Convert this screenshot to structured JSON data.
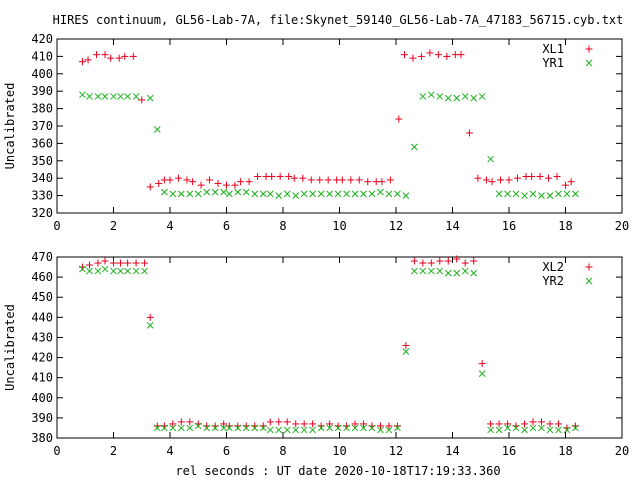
{
  "chart_data": [
    {
      "type": "scatter",
      "title": "HIRES continuum, GL56-Lab-7A, file:Skynet_59140_GL56-Lab-7A_47183_56715.cyb.txt",
      "xlabel": "",
      "ylabel": "Uncalibrated",
      "xlim": [
        0,
        20
      ],
      "ylim": [
        320,
        420
      ],
      "xticks": [
        "0",
        "2",
        "4",
        "6",
        "8",
        "10",
        "12",
        "14",
        "16",
        "18",
        "20"
      ],
      "yticks": [
        "320",
        "330",
        "340",
        "350",
        "360",
        "370",
        "380",
        "390",
        "400",
        "410",
        "420"
      ],
      "grid": false,
      "legend_position": "top-right",
      "series": [
        {
          "name": "XL1",
          "marker": "plus",
          "color": "#e8001c",
          "x": [
            0.9,
            1.1,
            1.4,
            1.7,
            1.9,
            2.2,
            2.4,
            2.7,
            3.0,
            3.3,
            3.6,
            3.8,
            4.0,
            4.3,
            4.6,
            4.8,
            5.1,
            5.4,
            5.7,
            6.0,
            6.3,
            6.5,
            6.8,
            7.1,
            7.4,
            7.6,
            7.9,
            8.2,
            8.4,
            8.7,
            9.0,
            9.3,
            9.6,
            9.9,
            10.1,
            10.4,
            10.7,
            11.0,
            11.3,
            11.5,
            11.8,
            12.1,
            12.3,
            12.6,
            12.9,
            13.2,
            13.5,
            13.8,
            14.1,
            14.3,
            14.6,
            14.9,
            15.2,
            15.4,
            15.7,
            16.0,
            16.3,
            16.6,
            16.8,
            17.1,
            17.4,
            17.7,
            18.0,
            18.2
          ],
          "y": [
            407,
            408,
            411,
            411,
            409,
            409,
            410,
            410,
            385,
            335,
            337,
            339,
            339,
            340,
            339,
            338,
            336,
            339,
            337,
            336,
            336,
            338,
            338,
            341,
            341,
            341,
            341,
            341,
            340,
            340,
            339,
            339,
            339,
            339,
            339,
            339,
            339,
            338,
            338,
            338,
            339,
            374,
            411,
            409,
            410,
            412,
            411,
            410,
            411,
            411,
            366,
            340,
            339,
            338,
            339,
            339,
            340,
            341,
            341,
            341,
            340,
            341,
            336,
            338
          ],
          "x_adj": [
            0.9,
            1.15,
            1.45,
            1.7,
            2.0,
            2.25,
            2.5,
            2.8,
            3.1,
            3.3,
            3.55,
            3.8,
            4.1,
            4.4,
            4.7,
            5.0,
            5.3,
            5.6,
            5.9,
            6.1,
            6.4,
            6.7,
            7.0,
            7.3,
            7.55,
            7.85,
            8.15,
            8.45,
            8.75,
            9.05,
            9.35,
            9.65,
            9.95,
            10.25,
            10.55,
            10.85,
            11.15,
            11.45,
            11.75,
            12.05,
            12.35,
            12.65,
            12.95,
            13.25,
            13.55,
            13.85,
            14.15,
            14.45,
            14.75,
            15.05,
            15.35,
            15.65,
            15.95,
            16.25,
            16.55,
            16.85,
            17.15,
            17.45,
            17.75,
            18.05,
            18.35
          ]
        },
        {
          "name": "YR1",
          "marker": "cross",
          "color": "#1ab21a",
          "x": [
            0.9,
            1.15,
            1.45,
            1.7,
            2.0,
            2.25,
            2.5,
            2.8,
            3.3,
            3.55,
            3.8,
            4.1,
            4.4,
            4.7,
            5.0,
            5.3,
            5.6,
            5.9,
            6.1,
            6.4,
            6.7,
            7.0,
            7.3,
            7.55,
            7.85,
            8.15,
            8.45,
            8.75,
            9.05,
            9.35,
            9.65,
            9.95,
            10.25,
            10.55,
            10.85,
            11.15,
            11.45,
            11.75,
            12.05,
            12.35,
            12.65,
            12.95,
            13.25,
            13.55,
            13.85,
            14.15,
            14.45,
            14.75,
            15.05,
            15.35,
            15.65,
            15.95,
            16.25,
            16.55,
            16.85,
            17.15,
            17.45,
            17.75,
            18.05,
            18.35
          ],
          "y": [
            388,
            387,
            387,
            387,
            387,
            387,
            387,
            387,
            386,
            368,
            332,
            331,
            331,
            331,
            331,
            332,
            332,
            332,
            331,
            332,
            332,
            331,
            331,
            331,
            330,
            331,
            330,
            331,
            331,
            331,
            331,
            331,
            331,
            331,
            331,
            331,
            332,
            331,
            331,
            330,
            358,
            387,
            388,
            387,
            386,
            386,
            387,
            386,
            387,
            351,
            331,
            331,
            331,
            330,
            331,
            330,
            330,
            331,
            331,
            331
          ]
        }
      ]
    },
    {
      "type": "scatter",
      "title": "",
      "xlabel": "rel seconds : UT date 2020-10-18T17:19:33.360",
      "ylabel": "Uncalibrated",
      "xlim": [
        0,
        20
      ],
      "ylim": [
        380,
        470
      ],
      "xticks": [
        "0",
        "2",
        "4",
        "6",
        "8",
        "10",
        "12",
        "14",
        "16",
        "18",
        "20"
      ],
      "yticks": [
        "380",
        "390",
        "400",
        "410",
        "420",
        "430",
        "440",
        "450",
        "460",
        "470"
      ],
      "grid": false,
      "legend_position": "top-right",
      "series": [
        {
          "name": "XL2",
          "marker": "plus",
          "color": "#e8001c",
          "x": [
            0.9,
            1.15,
            1.45,
            1.7,
            2.0,
            2.25,
            2.5,
            2.8,
            3.1,
            3.3,
            3.55,
            3.8,
            4.1,
            4.4,
            4.7,
            5.0,
            5.3,
            5.6,
            5.9,
            6.1,
            6.4,
            6.7,
            7.0,
            7.3,
            7.55,
            7.85,
            8.15,
            8.45,
            8.75,
            9.05,
            9.35,
            9.65,
            9.95,
            10.25,
            10.55,
            10.85,
            11.15,
            11.45,
            11.75,
            12.05,
            12.35,
            12.65,
            12.95,
            13.25,
            13.55,
            13.85,
            14.15,
            14.45,
            14.75,
            15.05,
            15.35,
            15.65,
            15.95,
            16.25,
            16.55,
            16.85,
            17.15,
            17.45,
            17.75,
            18.05,
            18.35
          ],
          "y": [
            465,
            466,
            467,
            468,
            467,
            467,
            467,
            467,
            467,
            440,
            386,
            386,
            387,
            388,
            388,
            387,
            386,
            386,
            387,
            386,
            386,
            386,
            386,
            386,
            388,
            388,
            388,
            387,
            387,
            387,
            386,
            387,
            386,
            386,
            387,
            387,
            386,
            386,
            386,
            386,
            426,
            468,
            467,
            467,
            468,
            468,
            469,
            467,
            468,
            417,
            387,
            387,
            387,
            386,
            387,
            388,
            388,
            387,
            387,
            385,
            386
          ],
          "x_adj": [
            0.9,
            1.15,
            1.45,
            1.7,
            2.0,
            2.25,
            2.5,
            2.8,
            3.1,
            3.3,
            3.55,
            3.8,
            4.1,
            4.4,
            4.7,
            5.0,
            5.3,
            5.6,
            5.9,
            6.1,
            6.4,
            6.7,
            7.0,
            7.3,
            7.55,
            7.85,
            8.15,
            8.45,
            8.75,
            9.05,
            9.35,
            9.65,
            9.95,
            10.25,
            10.55,
            10.85,
            11.15,
            11.45,
            11.75,
            12.05,
            12.35,
            12.65,
            12.95,
            13.25,
            13.55,
            13.85,
            14.15,
            14.45,
            14.75,
            15.05,
            15.35,
            15.65,
            15.95,
            16.25,
            16.55,
            16.85,
            17.15,
            17.45,
            17.75,
            18.05,
            18.35
          ]
        },
        {
          "name": "YR2",
          "marker": "cross",
          "color": "#1ab21a",
          "x": [
            0.9,
            1.15,
            1.45,
            1.7,
            2.0,
            2.25,
            2.5,
            2.8,
            3.1,
            3.3,
            3.55,
            3.8,
            4.1,
            4.4,
            4.7,
            5.0,
            5.3,
            5.6,
            5.9,
            6.1,
            6.4,
            6.7,
            7.0,
            7.3,
            7.55,
            7.85,
            8.15,
            8.45,
            8.75,
            9.05,
            9.35,
            9.65,
            9.95,
            10.25,
            10.55,
            10.85,
            11.15,
            11.45,
            11.75,
            12.05,
            12.35,
            12.65,
            12.95,
            13.25,
            13.55,
            13.85,
            14.15,
            14.45,
            14.75,
            15.05,
            15.35,
            15.65,
            15.95,
            16.25,
            16.55,
            16.85,
            17.15,
            17.45,
            17.75,
            18.05,
            18.35
          ],
          "y": [
            464,
            463,
            463,
            464,
            463,
            463,
            463,
            463,
            463,
            436,
            385,
            385,
            385,
            385,
            385,
            386,
            385,
            385,
            385,
            385,
            385,
            385,
            385,
            385,
            384,
            384,
            384,
            384,
            384,
            384,
            385,
            385,
            385,
            385,
            385,
            385,
            385,
            384,
            384,
            385,
            423,
            463,
            463,
            463,
            463,
            462,
            462,
            463,
            462,
            412,
            384,
            384,
            385,
            385,
            384,
            385,
            385,
            384,
            384,
            384,
            385
          ]
        }
      ]
    }
  ]
}
